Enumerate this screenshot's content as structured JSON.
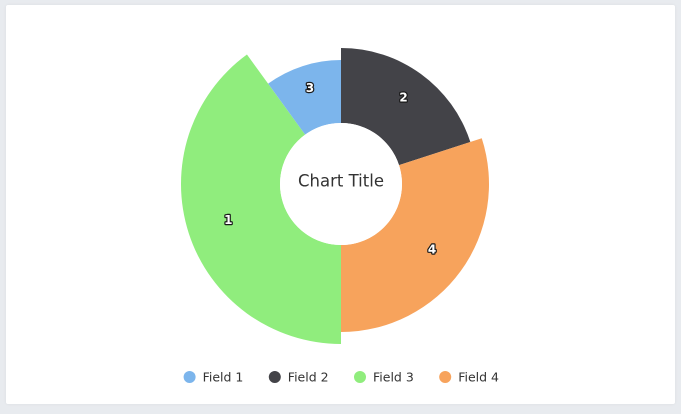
{
  "chart_data": {
    "type": "pie",
    "variant": "variable-radius-donut",
    "title": "Chart Title",
    "categories": [
      "Field 1",
      "Field 2",
      "Field 3",
      "Field 4"
    ],
    "values": [
      1,
      2,
      4,
      3
    ],
    "slice_order": [
      "Field 2",
      "Field 4",
      "Field 3",
      "Field 1"
    ],
    "data_labels": [
      "2",
      "4",
      "1",
      "3"
    ],
    "colors": {
      "Field 1": "#7cb5ec",
      "Field 2": "#434348",
      "Field 3": "#90ed7d",
      "Field 4": "#f7a35c"
    },
    "legend": {
      "placement": "bottom-center",
      "items": [
        "Field 1",
        "Field 2",
        "Field 3",
        "Field 4"
      ]
    }
  }
}
